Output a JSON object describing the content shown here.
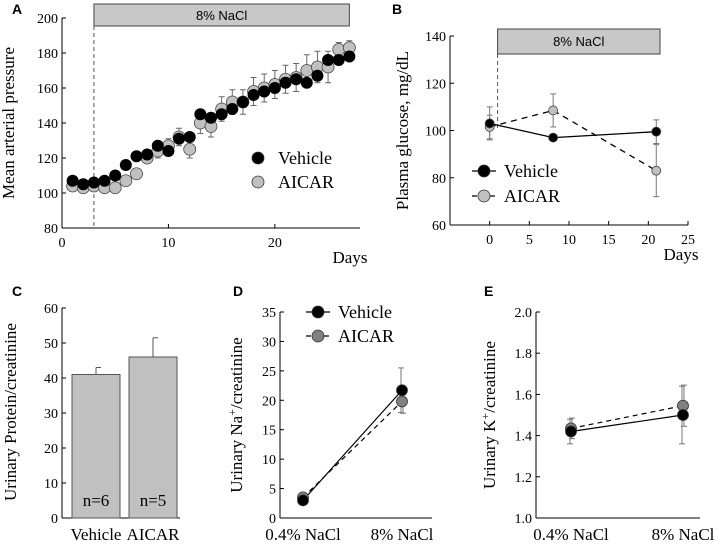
{
  "chart_data": [
    {
      "panel": "A",
      "type": "scatter",
      "title": "",
      "xlabel": "Days",
      "ylabel": "Mean arterial pressure",
      "xlim": [
        0,
        28
      ],
      "ylim": [
        80,
        200
      ],
      "xticks": [
        0,
        10,
        20
      ],
      "yticks": [
        80,
        100,
        120,
        140,
        160,
        180,
        200
      ],
      "treatment_label": "8% NaCl",
      "treatment_start_day": 3,
      "treatment_end_day": 27,
      "series": [
        {
          "name": "Vehicle",
          "marker_color": "#000000",
          "x": [
            1,
            2,
            3,
            4,
            5,
            6,
            7,
            8,
            9,
            10,
            11,
            12,
            13,
            14,
            15,
            16,
            17,
            18,
            19,
            20,
            21,
            22,
            23,
            24,
            25,
            26,
            27
          ],
          "y": [
            107,
            105,
            106,
            107,
            110,
            116,
            121,
            122,
            127,
            124,
            131,
            132,
            145,
            143,
            145,
            148,
            152,
            156,
            158,
            160,
            163,
            165,
            163,
            167,
            176,
            176,
            178
          ]
        },
        {
          "name": "AICAR",
          "marker_color": "#c0c0c0",
          "x": [
            1,
            2,
            3,
            4,
            5,
            6,
            7,
            8,
            9,
            10,
            11,
            12,
            13,
            14,
            15,
            16,
            17,
            18,
            19,
            20,
            21,
            22,
            23,
            24,
            25,
            26,
            27
          ],
          "y": [
            104,
            103,
            104,
            103,
            103,
            107,
            111,
            120,
            124,
            127,
            132,
            125,
            140,
            138,
            148,
            152,
            152,
            158,
            160,
            162,
            165,
            166,
            170,
            172,
            172,
            182,
            183
          ],
          "err": [
            3,
            3,
            3,
            3,
            3,
            3,
            3,
            3,
            4,
            4,
            5,
            5,
            6,
            6,
            7,
            7,
            7,
            8,
            8,
            8,
            8,
            8,
            9,
            9,
            9,
            4,
            4
          ]
        }
      ]
    },
    {
      "panel": "B",
      "type": "line",
      "title": "",
      "xlabel": "Days",
      "ylabel": "Plasma glucose, mg/dL",
      "xlim": [
        -5,
        25
      ],
      "ylim": [
        60,
        140
      ],
      "xticks": [
        0,
        5,
        10,
        15,
        20,
        25
      ],
      "yticks": [
        60,
        80,
        100,
        120,
        140
      ],
      "treatment_label": "8% NaCl",
      "treatment_start_day": 1,
      "series": [
        {
          "name": "Vehicle",
          "line": "solid",
          "marker_color": "#000000",
          "x": [
            0,
            8,
            21
          ],
          "y": [
            103,
            97,
            99.5
          ],
          "err": [
            7,
            0,
            5
          ]
        },
        {
          "name": "AICAR",
          "line": "dashed",
          "marker_color": "#c0c0c0",
          "x": [
            0,
            8,
            21
          ],
          "y": [
            101.5,
            108.5,
            83
          ],
          "err": [
            5,
            7,
            11
          ]
        }
      ]
    },
    {
      "panel": "C",
      "type": "bar",
      "title": "",
      "xlabel": "",
      "ylabel": "Urinary Protein/creatinine",
      "ylim": [
        0,
        60
      ],
      "yticks": [
        0,
        10,
        20,
        30,
        40,
        50,
        60
      ],
      "categories": [
        "Vehicle",
        "AICAR"
      ],
      "values": [
        41,
        46
      ],
      "errors": [
        2,
        5.5
      ],
      "annotations": [
        "n=6",
        "n=5"
      ],
      "bar_color": "#c0c0c0"
    },
    {
      "panel": "D",
      "type": "line",
      "title": "",
      "xlabel": "",
      "ylabel": "Urinary Na+/creatinine",
      "ylabel_base": "Urinary Na",
      "ylabel_sup": "+",
      "ylabel_tail": "/creatinine",
      "ylim": [
        0,
        35
      ],
      "yticks": [
        0,
        5,
        10,
        15,
        20,
        25,
        30,
        35
      ],
      "categories": [
        "0.4% NaCl",
        "8% NaCl"
      ],
      "series": [
        {
          "name": "Vehicle",
          "line": "solid",
          "marker_color": "#000000",
          "values": [
            3,
            21.7
          ],
          "err": [
            0.5,
            3.8
          ]
        },
        {
          "name": "AICAR",
          "line": "dashed",
          "marker_color": "#808080",
          "values": [
            3.5,
            19.8
          ],
          "err": [
            0.5,
            2
          ]
        }
      ]
    },
    {
      "panel": "E",
      "type": "line",
      "title": "",
      "xlabel": "",
      "ylabel": "Urinary K+/creatinine",
      "ylabel_base": "Urinary K",
      "ylabel_sup": "+",
      "ylabel_tail": "/creatinine",
      "ylim": [
        1.0,
        2.0
      ],
      "yticks": [
        "1.0",
        "1.2",
        "1.4",
        "1.6",
        "1.8",
        "2.0"
      ],
      "categories": [
        "0.4% NaCl",
        "8% NaCl"
      ],
      "series": [
        {
          "name": "Vehicle",
          "line": "solid",
          "marker_color": "#000000",
          "values": [
            1.42,
            1.5
          ],
          "err": [
            0.06,
            0.14
          ]
        },
        {
          "name": "AICAR",
          "line": "dashed",
          "marker_color": "#808080",
          "values": [
            1.435,
            1.545
          ],
          "err": [
            0.05,
            0.1
          ]
        }
      ]
    }
  ]
}
